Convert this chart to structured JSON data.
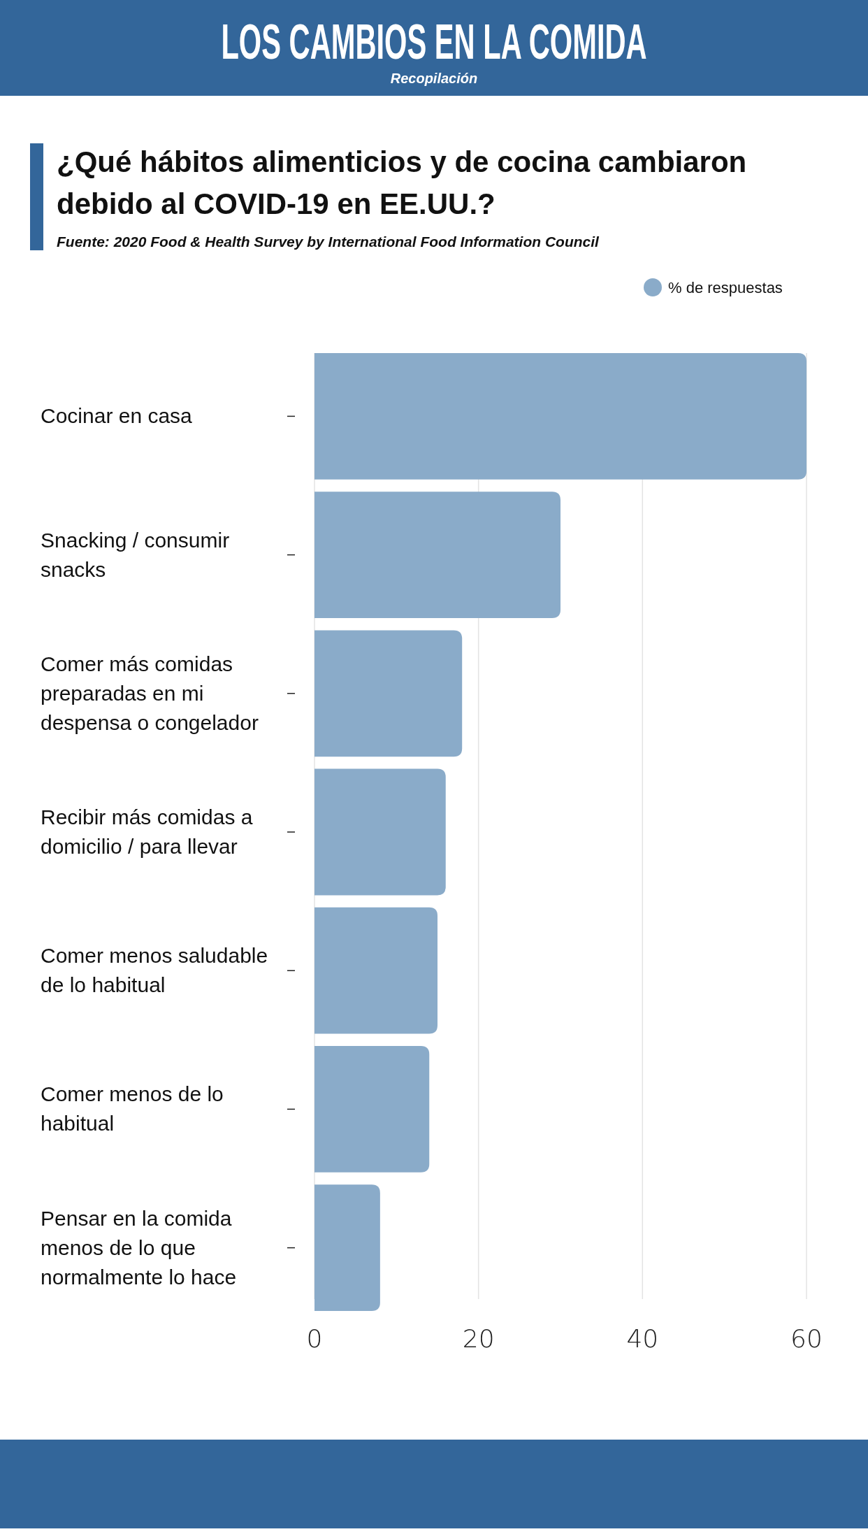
{
  "chart_data": {
    "type": "bar",
    "orientation": "horizontal",
    "title": "LOS CAMBIOS EN LA COMIDA",
    "subtitle": "¿Qué hábitos alimenticios y de cocina cambiaron debido al COVID-19 en EE.UU.?",
    "annotations": [
      "Recopilación",
      "Fuente: 2020 Food & Health Survey by International Food Information Council"
    ],
    "categories": [
      "Cocinar en casa",
      "Snacking / consumir snacks",
      "Comer más comidas preparadas en mi despensa o congelador",
      "Recibir más comidas a domicilio / para llevar",
      "Comer menos saludable de lo habitual",
      "Comer menos de lo habitual",
      "Pensar en la comida menos de lo que normalmente lo hace"
    ],
    "series": [
      {
        "name": "% de respuestas",
        "color": "#8aabc9",
        "values": [
          60,
          30,
          18,
          16,
          15,
          14,
          8
        ]
      }
    ],
    "xlim": [
      0,
      60
    ],
    "xticks": [
      0,
      20,
      40,
      60
    ],
    "grid": "x",
    "legend": "top right"
  }
}
